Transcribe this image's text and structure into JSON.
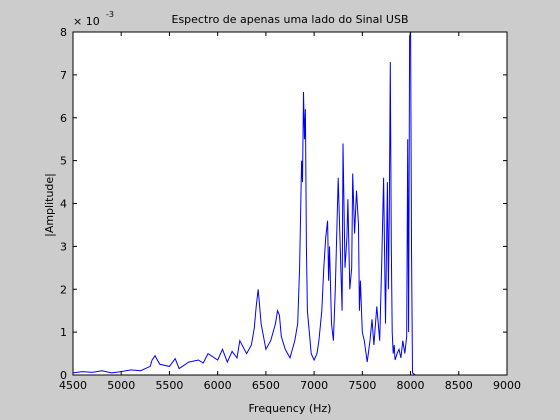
{
  "chart_data": {
    "type": "line",
    "title": "Espectro de apenas uma lado do Sinal USB",
    "xlabel": "Frequency (Hz)",
    "ylabel": "|Amplitude|",
    "y_exponent_label": "× 10",
    "y_exponent_power": "-3",
    "xlim": [
      4500,
      9000
    ],
    "ylim": [
      0,
      8
    ],
    "x_ticks": [
      4500,
      5000,
      5500,
      6000,
      6500,
      7000,
      7500,
      8000,
      8500,
      9000
    ],
    "y_ticks": [
      0,
      1,
      2,
      3,
      4,
      5,
      6,
      7,
      8
    ],
    "grid": false,
    "line_color": "#0000ff",
    "series": [
      {
        "x": [
          4500,
          4600,
          4700,
          4800,
          4900,
          5000,
          5100,
          5200,
          5300,
          5320,
          5350,
          5400,
          5500,
          5560,
          5600,
          5700,
          5800,
          5850,
          5900,
          6000,
          6050,
          6100,
          6150,
          6200,
          6230,
          6300,
          6350,
          6380,
          6400,
          6420,
          6450,
          6500,
          6550,
          6600,
          6620,
          6640,
          6660,
          6700,
          6750,
          6800,
          6830,
          6850,
          6870,
          6880,
          6890,
          6900,
          6910,
          6920,
          6930,
          6950,
          6970,
          7000,
          7030,
          7050,
          7080,
          7100,
          7120,
          7140,
          7150,
          7160,
          7180,
          7200,
          7220,
          7250,
          7270,
          7290,
          7300,
          7320,
          7340,
          7350,
          7370,
          7390,
          7400,
          7420,
          7440,
          7460,
          7470,
          7480,
          7500,
          7520,
          7550,
          7580,
          7600,
          7620,
          7650,
          7680,
          7700,
          7720,
          7740,
          7760,
          7770,
          7780,
          7790,
          7800,
          7810,
          7820,
          7830,
          7840,
          7860,
          7880,
          7900,
          7920,
          7940,
          7960,
          7970,
          7980,
          7990,
          8000,
          8010,
          8020,
          8050,
          8100,
          8200,
          8500,
          8800,
          9000
        ],
        "y": [
          0.05,
          0.08,
          0.06,
          0.1,
          0.05,
          0.08,
          0.12,
          0.1,
          0.2,
          0.35,
          0.45,
          0.25,
          0.2,
          0.38,
          0.15,
          0.3,
          0.35,
          0.28,
          0.5,
          0.35,
          0.6,
          0.3,
          0.55,
          0.4,
          0.8,
          0.5,
          0.7,
          1.1,
          1.6,
          2.0,
          1.2,
          0.6,
          0.8,
          1.2,
          1.5,
          1.4,
          0.9,
          0.6,
          0.4,
          0.8,
          1.2,
          2.5,
          5.0,
          4.5,
          6.6,
          5.5,
          6.2,
          3.0,
          1.5,
          1.0,
          0.5,
          0.35,
          0.5,
          0.8,
          1.5,
          2.5,
          3.2,
          3.6,
          2.2,
          3.0,
          1.2,
          0.8,
          2.0,
          4.6,
          3.0,
          1.5,
          5.4,
          2.5,
          3.2,
          4.1,
          2.0,
          2.5,
          4.7,
          3.3,
          4.3,
          3.5,
          1.5,
          2.2,
          1.0,
          0.8,
          0.3,
          0.8,
          1.3,
          0.7,
          1.6,
          0.8,
          2.5,
          4.6,
          1.2,
          4.5,
          2.0,
          3.8,
          7.3,
          3.0,
          1.0,
          0.5,
          0.7,
          0.35,
          0.5,
          0.6,
          0.4,
          0.8,
          0.5,
          0.9,
          5.5,
          1.0,
          7.9,
          8.0,
          3.0,
          0.05,
          0.0,
          0.0,
          0.0,
          0.0,
          0.0,
          0.0
        ]
      }
    ]
  }
}
